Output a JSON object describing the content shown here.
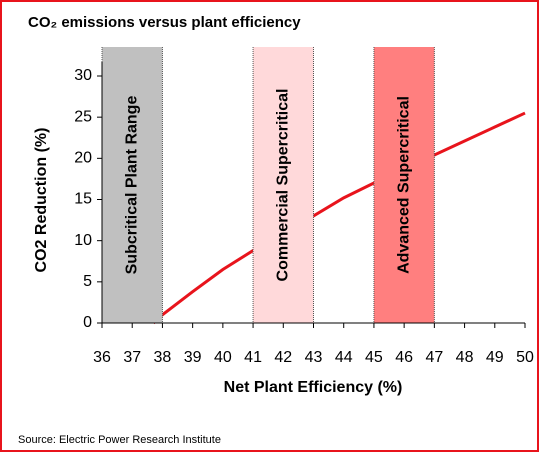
{
  "chart_data": {
    "type": "line",
    "title": "CO₂ emissions versus plant efficiency",
    "x_label": "Net Plant Efficiency (%)",
    "y_label": "CO2 Reduction (%)",
    "source": "Source: Electric Power Research Institute",
    "x": [
      37.7,
      38,
      39,
      40,
      41,
      42,
      43,
      44,
      45,
      46,
      47,
      48,
      49,
      50
    ],
    "series": [
      {
        "color": "#e8141c",
        "values": [
          0,
          1,
          3.8,
          6.5,
          8.8,
          11,
          13,
          15.2,
          17,
          18.8,
          20.4,
          22.1,
          23.8,
          25.5
        ]
      }
    ],
    "regions": [
      {
        "start": 36,
        "end": 38,
        "label": "Subcritical Plant Range",
        "color": "#c0c0c0"
      },
      {
        "start": 41,
        "end": 43,
        "label": "Commercial Supercritical",
        "color": "#ffd9da"
      },
      {
        "start": 45,
        "end": 47,
        "label": "Advanced Supercritical",
        "color": "#ff7f7f"
      }
    ],
    "xlim": [
      36,
      50
    ],
    "xticks": [
      36,
      37,
      38,
      39,
      40,
      41,
      42,
      43,
      44,
      45,
      46,
      47,
      48,
      49,
      50
    ],
    "ylim": [
      0,
      30
    ],
    "yticks": [
      0,
      5,
      10,
      15,
      20,
      25,
      30
    ]
  }
}
